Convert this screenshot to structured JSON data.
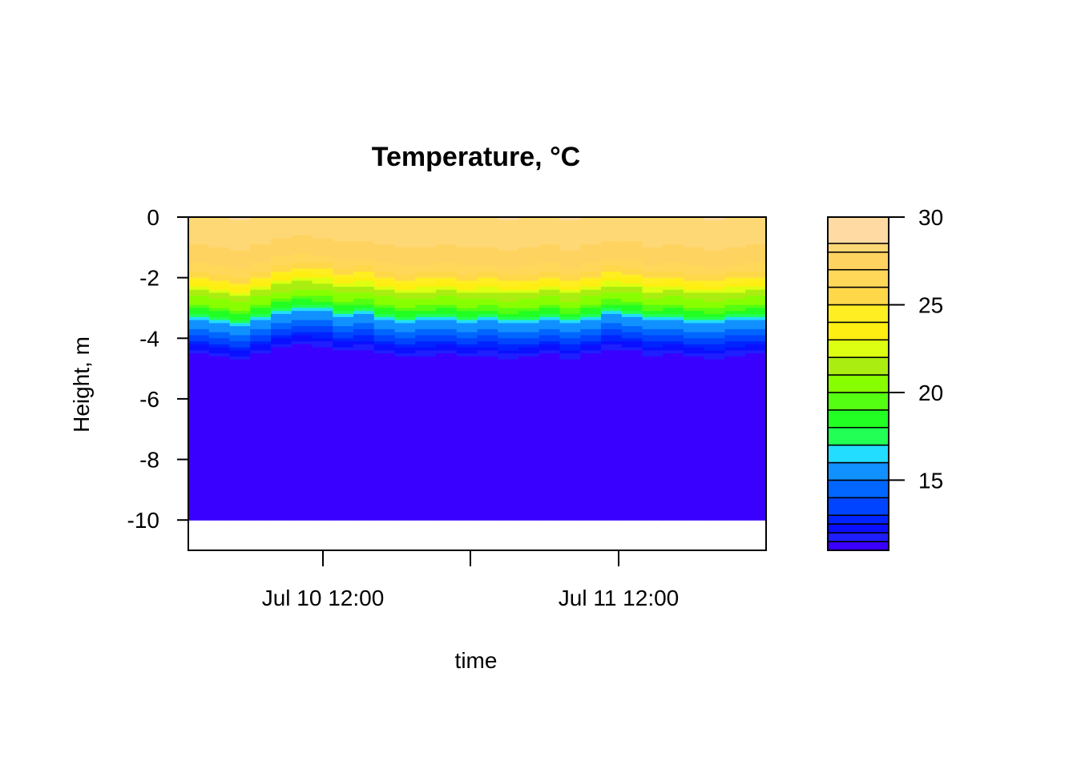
{
  "chart_data": {
    "type": "heatmap",
    "title": "Temperature, °C",
    "xlabel": "time",
    "ylabel": "Height, m",
    "x_tick_labels": [
      "Jul 10 12:00",
      "Jul 11 12:00"
    ],
    "y_ticks": [
      0,
      -2,
      -4,
      -6,
      -8,
      -10
    ],
    "ylim": [
      -11,
      0
    ],
    "data_ylim": [
      -10,
      0
    ],
    "legend": {
      "position": "right",
      "min": 11,
      "max": 30,
      "ticks": [
        15,
        20,
        25,
        30
      ],
      "levels": [
        11,
        11.5,
        12,
        12.5,
        13,
        14,
        15,
        16,
        17,
        18,
        19,
        20,
        21,
        22,
        23,
        24,
        25,
        26,
        27,
        28,
        28.5,
        30
      ],
      "colors": [
        "#3A00FF",
        "#1E1EFF",
        "#0A10FF",
        "#0024FF",
        "#0044FF",
        "#0066FF",
        "#1190FF",
        "#22DDFF",
        "#22FF55",
        "#22FF22",
        "#55FF11",
        "#88FF00",
        "#AAEE11",
        "#DDFF11",
        "#FFEE11",
        "#FFEE22",
        "#FFD84A",
        "#FFD85A",
        "#FFD360",
        "#FFD876",
        "#FFDAA2"
      ]
    },
    "profile_depth": [
      0,
      -1,
      -1.5,
      -2,
      -2.5,
      -3,
      -3.3,
      -3.5,
      -3.8,
      -4.2,
      -4.6,
      -10
    ],
    "profile_temp": [
      28.5,
      28,
      27.5,
      25.5,
      22,
      20,
      18,
      16,
      15,
      13,
      11.5,
      11
    ],
    "thermocline_shift_m": [
      0.1,
      0.0,
      -0.1,
      0.1,
      0.3,
      0.4,
      0.35,
      0.2,
      0.25,
      0.1,
      0.0,
      0.05,
      0.1,
      0.0,
      0.05,
      -0.05,
      0.0,
      0.1,
      -0.05,
      0.1,
      0.25,
      0.2,
      0.05,
      0.1,
      0.0,
      -0.05,
      0.05,
      0.1
    ]
  }
}
